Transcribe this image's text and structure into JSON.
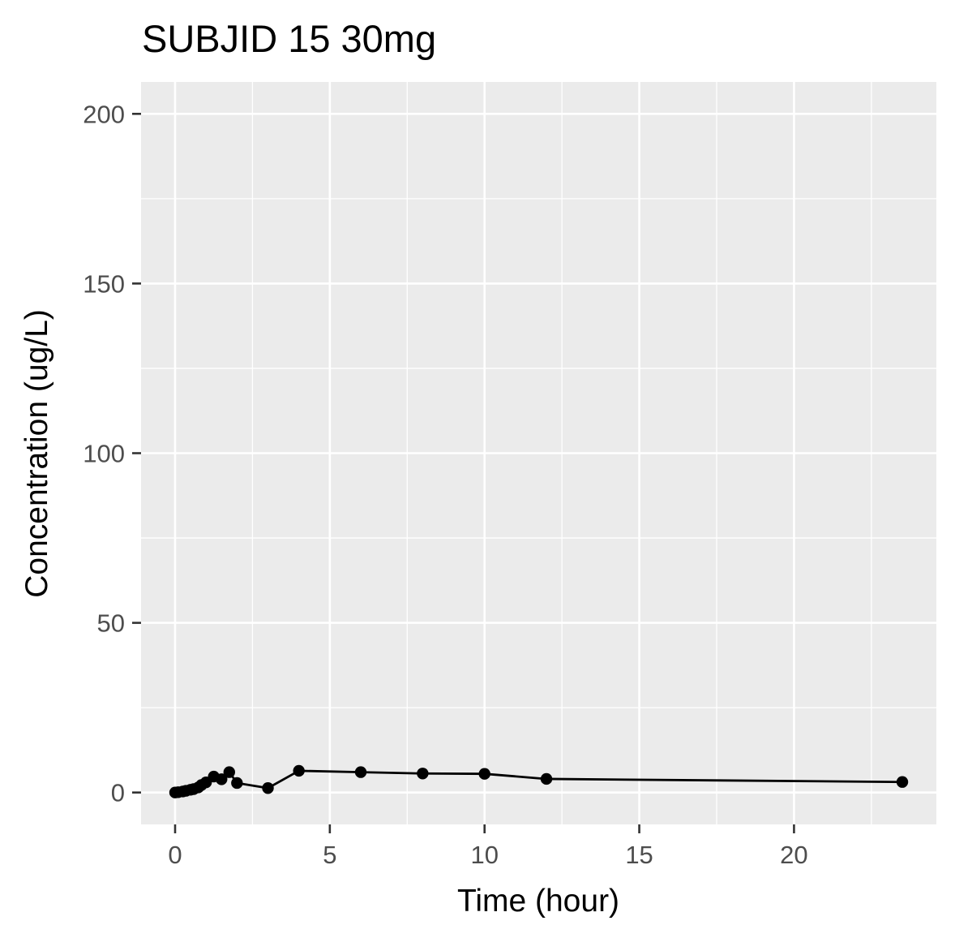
{
  "chart_data": {
    "type": "line",
    "title": "SUBJID 15 30mg",
    "xlabel": "Time (hour)",
    "ylabel": "Concentration (ug/L)",
    "xlim": [
      -1.1,
      24.6
    ],
    "ylim": [
      -9.4,
      209.4
    ],
    "xticks": [
      0,
      5,
      10,
      15,
      20
    ],
    "yticks": [
      0,
      50,
      100,
      150,
      200
    ],
    "x_tick_labels": [
      "0",
      "5",
      "10",
      "15",
      "20"
    ],
    "y_tick_labels": [
      "0",
      "50",
      "100",
      "150",
      "200"
    ],
    "grid": true,
    "legend": "none",
    "series": [
      {
        "color": "#000000",
        "marker": "circle",
        "points": [
          {
            "x": 0,
            "y": 0
          },
          {
            "x": 0.1,
            "y": 0.1
          },
          {
            "x": 0.25,
            "y": 0.3
          },
          {
            "x": 0.35,
            "y": 0.5
          },
          {
            "x": 0.5,
            "y": 0.8
          },
          {
            "x": 0.6,
            "y": 1.0
          },
          {
            "x": 0.75,
            "y": 1.5
          },
          {
            "x": 0.85,
            "y": 2.2
          },
          {
            "x": 1.0,
            "y": 3.0
          },
          {
            "x": 1.25,
            "y": 4.7
          },
          {
            "x": 1.5,
            "y": 3.9
          },
          {
            "x": 1.75,
            "y": 6.0
          },
          {
            "x": 2.0,
            "y": 2.8
          },
          {
            "x": 3.0,
            "y": 1.3
          },
          {
            "x": 4.0,
            "y": 6.4
          },
          {
            "x": 6.0,
            "y": 6.0
          },
          {
            "x": 8.0,
            "y": 5.6
          },
          {
            "x": 10.0,
            "y": 5.5
          },
          {
            "x": 12.0,
            "y": 4.0
          },
          {
            "x": 23.5,
            "y": 3.1
          }
        ]
      }
    ]
  }
}
